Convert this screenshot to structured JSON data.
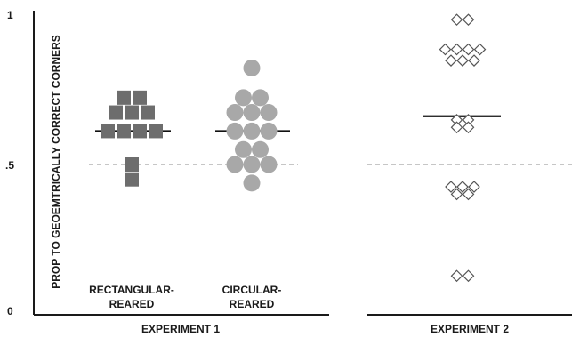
{
  "chart_data": {
    "type": "scatter",
    "y_axis": {
      "label": "PROP TO GEOEMTRICALLY CORRECT CORNERS",
      "ylim": [
        0.2,
        1.0
      ],
      "ticks": [
        {
          "value": 1.0,
          "label": "1"
        },
        {
          "value": 0.6,
          "label": ".5"
        },
        {
          "value": 0.2,
          "label": "0"
        }
      ]
    },
    "chance_level": 0.6,
    "experiments": [
      {
        "label": "EXPERIMENT 1",
        "groups": [
          {
            "label_line1": "RECTANGULAR-",
            "label_line2": "REARED",
            "marker": "square",
            "color": "#6d6d6d",
            "mean": 0.69,
            "points": [
              {
                "value": 0.78,
                "count": 2
              },
              {
                "value": 0.74,
                "count": 3
              },
              {
                "value": 0.69,
                "count": 4
              },
              {
                "value": 0.6,
                "count": 1
              },
              {
                "value": 0.56,
                "count": 1
              }
            ]
          },
          {
            "label_line1": "CIRCULAR-",
            "label_line2": "REARED",
            "marker": "circle",
            "color": "#a8a8a8",
            "mean": 0.69,
            "points": [
              {
                "value": 0.86,
                "count": 1
              },
              {
                "value": 0.78,
                "count": 2
              },
              {
                "value": 0.74,
                "count": 3
              },
              {
                "value": 0.69,
                "count": 3
              },
              {
                "value": 0.64,
                "count": 2
              },
              {
                "value": 0.6,
                "count": 3
              },
              {
                "value": 0.55,
                "count": 1
              }
            ]
          }
        ]
      },
      {
        "label": "EXPERIMENT 2",
        "groups": [
          {
            "label_line1": "",
            "label_line2": "",
            "marker": "diamond",
            "color": "#555555",
            "mean": 0.73,
            "points": [
              {
                "value": 0.99,
                "count": 2
              },
              {
                "value": 0.91,
                "count": 4
              },
              {
                "value": 0.88,
                "count": 3
              },
              {
                "value": 0.72,
                "count": 2
              },
              {
                "value": 0.7,
                "count": 2
              },
              {
                "value": 0.54,
                "count": 3
              },
              {
                "value": 0.52,
                "count": 2
              },
              {
                "value": 0.3,
                "count": 2
              }
            ]
          }
        ]
      }
    ]
  }
}
